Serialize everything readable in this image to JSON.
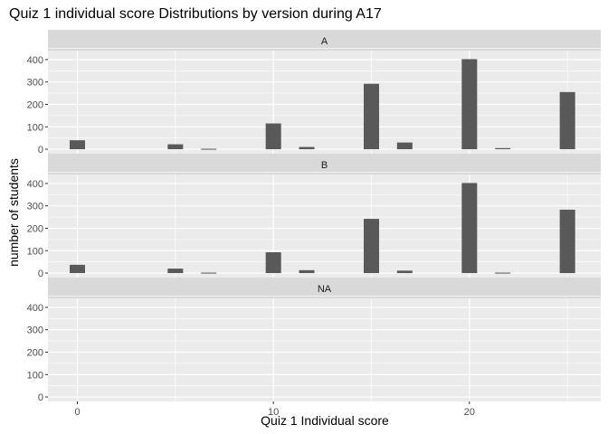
{
  "chart_data": {
    "type": "bar",
    "title": "Quiz 1 individual score Distributions by version during A17",
    "xlabel": "Quiz 1 Individual score",
    "ylabel": "number of students",
    "x_ticks": [
      0,
      10,
      20
    ],
    "y_ticks": [
      0,
      100,
      200,
      300,
      400
    ],
    "xlim": [
      -1.5,
      26.7
    ],
    "ylim": [
      -20,
      440
    ],
    "grid": true,
    "bar_color": "#595959",
    "panel_background": "#ebebeb",
    "strip_background": "#d9d9d9",
    "grid_color": "#ffffff",
    "facets": [
      {
        "label": "A",
        "bars": [
          {
            "x": 0,
            "y": 40
          },
          {
            "x": 5,
            "y": 22
          },
          {
            "x": 6.7,
            "y": 2
          },
          {
            "x": 10,
            "y": 115
          },
          {
            "x": 11.7,
            "y": 10
          },
          {
            "x": 15,
            "y": 292
          },
          {
            "x": 16.7,
            "y": 30
          },
          {
            "x": 20,
            "y": 402
          },
          {
            "x": 21.7,
            "y": 5
          },
          {
            "x": 25,
            "y": 255
          }
        ]
      },
      {
        "label": "B",
        "bars": [
          {
            "x": 0,
            "y": 37
          },
          {
            "x": 5,
            "y": 20
          },
          {
            "x": 6.7,
            "y": 2
          },
          {
            "x": 10,
            "y": 93
          },
          {
            "x": 11.7,
            "y": 13
          },
          {
            "x": 15,
            "y": 242
          },
          {
            "x": 16.7,
            "y": 11
          },
          {
            "x": 20,
            "y": 402
          },
          {
            "x": 21.7,
            "y": 2
          },
          {
            "x": 25,
            "y": 283
          }
        ]
      },
      {
        "label": "NA",
        "bars": []
      }
    ]
  }
}
